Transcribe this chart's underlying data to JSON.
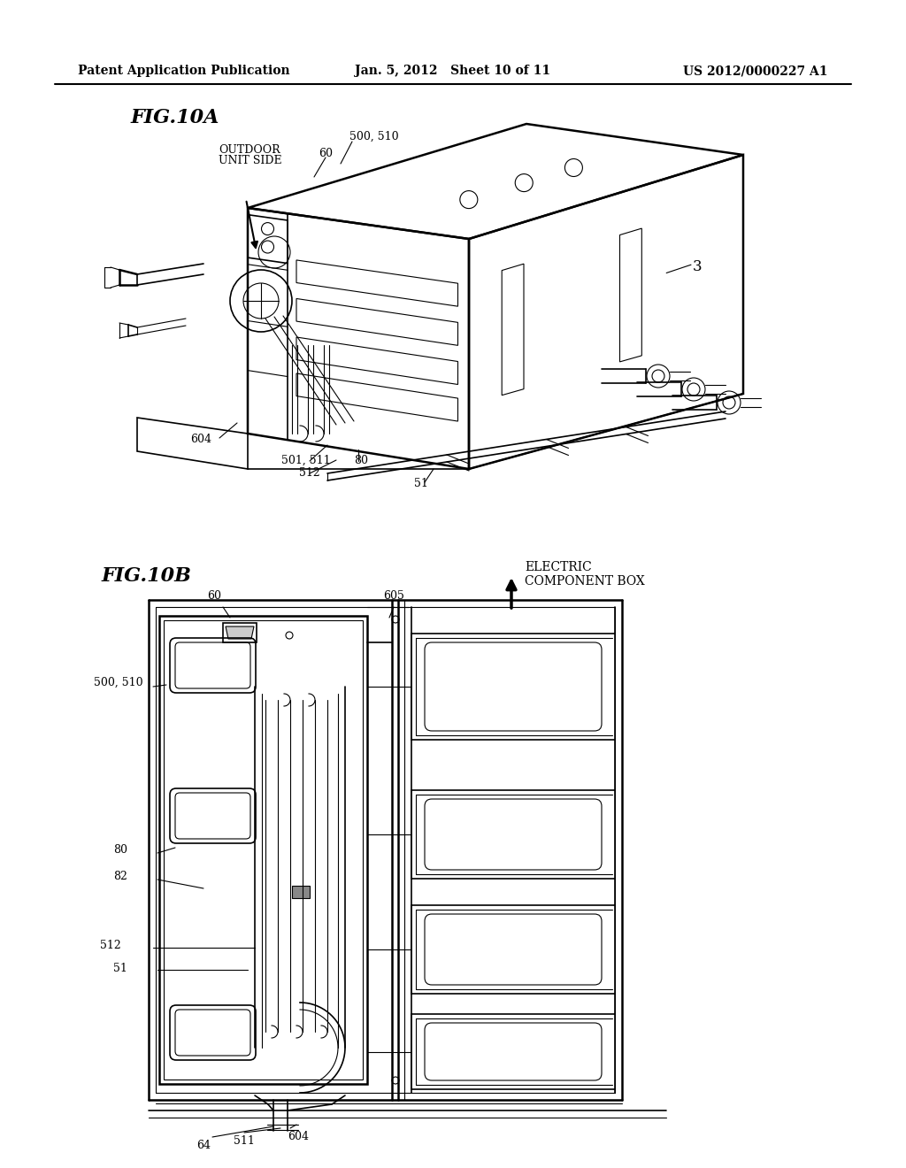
{
  "bg_color": "#ffffff",
  "header_left": "Patent Application Publication",
  "header_center": "Jan. 5, 2012   Sheet 10 of 11",
  "header_right": "US 2012/0000227 A1",
  "fig10a_label": "FIG.10A",
  "fig10b_label": "FIG.10B",
  "line_color": "#000000"
}
